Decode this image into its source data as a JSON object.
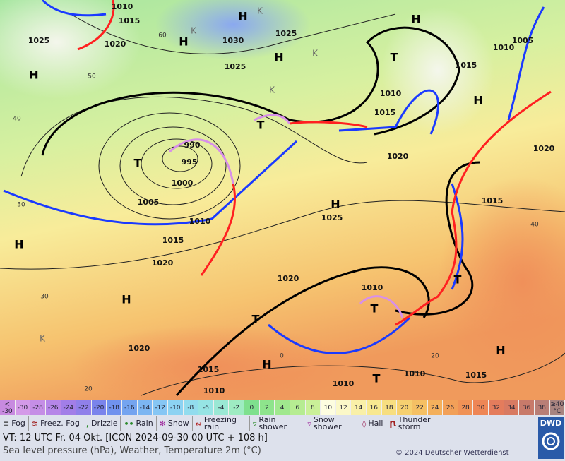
{
  "map": {
    "pressure_labels": [
      "1010",
      "1025",
      "1015",
      "1020",
      "1030",
      "1025",
      "1025",
      "1005",
      "1010",
      "1015",
      "1010",
      "1015",
      "1020",
      "1020",
      "990",
      "995",
      "1000",
      "1005",
      "1010",
      "1015",
      "1020",
      "1025",
      "1015",
      "1020",
      "1010",
      "1020",
      "1015",
      "1010",
      "1010",
      "1010",
      "1015"
    ],
    "high_labels": [
      "H",
      "H",
      "H",
      "H",
      "H",
      "H",
      "H",
      "H",
      "H",
      "H",
      "H"
    ],
    "low_labels": [
      "T",
      "T",
      "T",
      "T",
      "T",
      "T",
      "T"
    ],
    "temperature_labels": [
      "60",
      "50",
      "40",
      "30",
      "30",
      "40",
      "20",
      "20",
      "0"
    ],
    "cold_labels": [
      "K",
      "K",
      "K",
      "K",
      "K"
    ]
  },
  "scale": {
    "cells": [
      {
        "label": "< -30",
        "color": "#c88ae0"
      },
      {
        "label": "-30",
        "color": "#d49ae8"
      },
      {
        "label": "-28",
        "color": "#c58ee6"
      },
      {
        "label": "-26",
        "color": "#b686e8"
      },
      {
        "label": "-24",
        "color": "#a27ee8"
      },
      {
        "label": "-22",
        "color": "#9080ea"
      },
      {
        "label": "-20",
        "color": "#7a84ec"
      },
      {
        "label": "-18",
        "color": "#7092ee"
      },
      {
        "label": "-16",
        "color": "#74a4f0"
      },
      {
        "label": "-14",
        "color": "#7cb6f2"
      },
      {
        "label": "-12",
        "color": "#86c6f4"
      },
      {
        "label": "-10",
        "color": "#8cd2f2"
      },
      {
        "label": "-8",
        "color": "#92dcee"
      },
      {
        "label": "-6",
        "color": "#96e4e4"
      },
      {
        "label": "-4",
        "color": "#9ae8d4"
      },
      {
        "label": "-2",
        "color": "#9eecc2"
      },
      {
        "label": "0",
        "color": "#7ee08e"
      },
      {
        "label": "2",
        "color": "#8ee48c"
      },
      {
        "label": "4",
        "color": "#a0e88e"
      },
      {
        "label": "6",
        "color": "#b6ec92"
      },
      {
        "label": "8",
        "color": "#caf098"
      },
      {
        "label": "10",
        "color": "#fdfde0"
      },
      {
        "label": "12",
        "color": "#fbf8c8"
      },
      {
        "label": "14",
        "color": "#f9f0a8"
      },
      {
        "label": "16",
        "color": "#f8e890"
      },
      {
        "label": "18",
        "color": "#f7de80"
      },
      {
        "label": "20",
        "color": "#f6d070"
      },
      {
        "label": "22",
        "color": "#f5c064"
      },
      {
        "label": "24",
        "color": "#f4b05c"
      },
      {
        "label": "26",
        "color": "#f2a058"
      },
      {
        "label": "28",
        "color": "#f09256"
      },
      {
        "label": "30",
        "color": "#ee8656"
      },
      {
        "label": "32",
        "color": "#e47c5c"
      },
      {
        "label": "34",
        "color": "#d87a62"
      },
      {
        "label": "36",
        "color": "#c87a6a"
      },
      {
        "label": "38",
        "color": "#b87e76"
      },
      {
        "label": "≥40 °C",
        "color": "#a88480"
      }
    ]
  },
  "legend": {
    "items": [
      {
        "label": "Fog"
      },
      {
        "label": "Freez. Fog"
      },
      {
        "label": "Drizzle"
      },
      {
        "label": "Rain"
      },
      {
        "label": "Snow"
      },
      {
        "label": "Freezing rain"
      },
      {
        "label": "Rain shower"
      },
      {
        "label": "Snow shower"
      },
      {
        "label": "Hail"
      },
      {
        "label": "Thunder storm"
      }
    ]
  },
  "footer": {
    "valid_time": "VT: 12 UTC Fr.  04 Okt. [ICON 2024-09-30  00 UTC + 108 h]",
    "description": "Sea level pressure (hPa), Weather, Temperature 2m (°C)",
    "copyright": "© 2024 Deutscher Wetterdienst",
    "logo": "DWD"
  }
}
